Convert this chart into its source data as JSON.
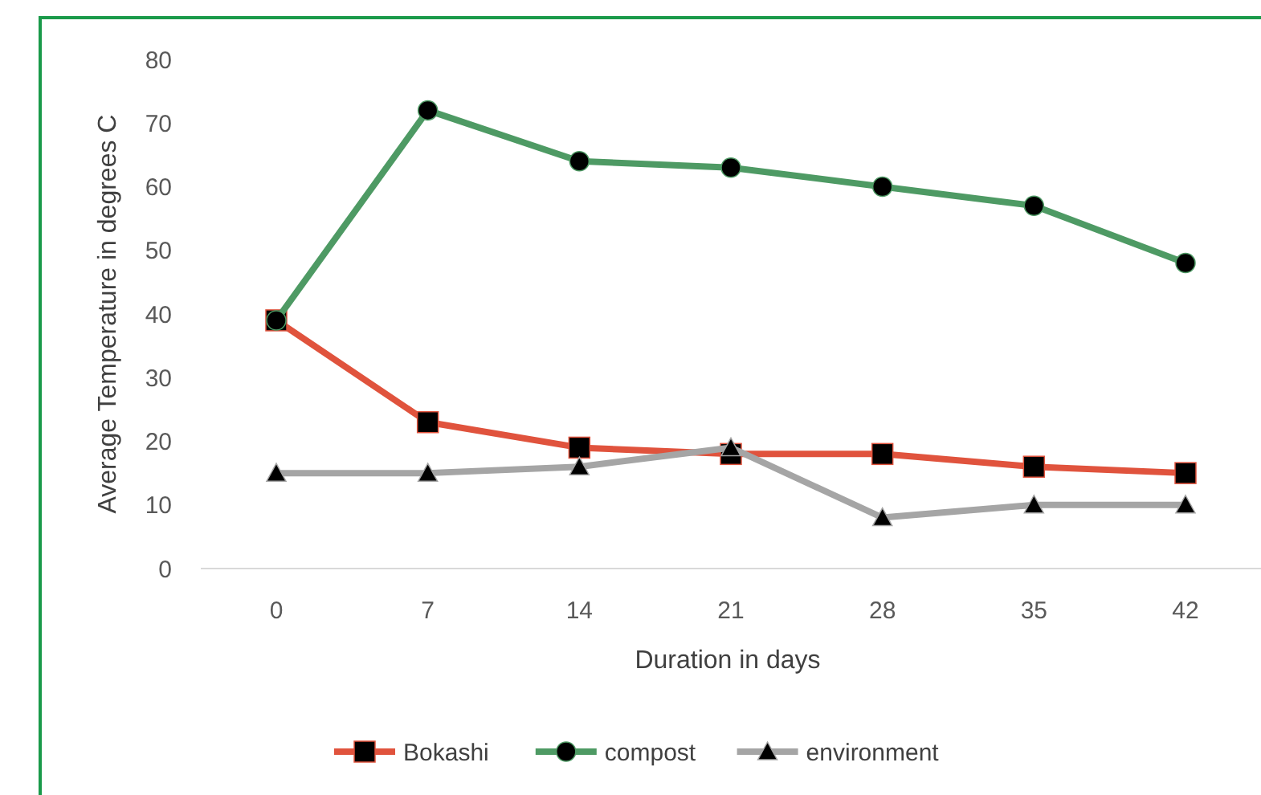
{
  "chart_data": {
    "type": "line",
    "xlabel": "Duration in days",
    "ylabel": "Average Temperature in degrees C",
    "categories": [
      "0",
      "7",
      "14",
      "21",
      "28",
      "35",
      "42"
    ],
    "ylim": [
      0,
      80
    ],
    "yticks": [
      0,
      10,
      20,
      30,
      40,
      50,
      60,
      70,
      80
    ],
    "grid": false,
    "legend": "bottom",
    "series": [
      {
        "name": "Bokashi",
        "color": "#e0533d",
        "marker": "square",
        "values": [
          39,
          23,
          19,
          18,
          18,
          16,
          15
        ]
      },
      {
        "name": "compost",
        "color": "#4e9a64",
        "marker": "circle",
        "values": [
          39,
          72,
          64,
          63,
          60,
          57,
          48
        ]
      },
      {
        "name": "environment",
        "color": "#a5a5a5",
        "marker": "triangle",
        "values": [
          15,
          15,
          16,
          19,
          8,
          10,
          10
        ]
      }
    ]
  }
}
